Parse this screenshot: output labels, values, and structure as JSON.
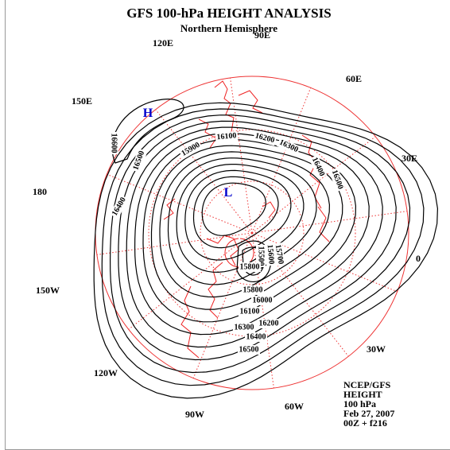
{
  "header": {
    "title": "GFS 100-hPa HEIGHT ANALYSIS",
    "subtitle": "Northern Hemisphere"
  },
  "longitude_labels": [
    "90E",
    "120E",
    "60E",
    "150E",
    "30E",
    "180",
    "0",
    "150W",
    "30W",
    "120W",
    "90W",
    "60W"
  ],
  "centers": {
    "high": "H",
    "low": "L"
  },
  "contour_labels": [
    "16600",
    "16500",
    "16400",
    "15900",
    "16100",
    "16200",
    "16300",
    "16400",
    "16500",
    "15500",
    "15600",
    "15700",
    "15800",
    "15800",
    "16000",
    "16100",
    "16200",
    "16300",
    "16400",
    "16500"
  ],
  "footer": {
    "lines": [
      "NCEP/GFS",
      "HEIGHT",
      "100 hPa",
      "Feb 27, 2007",
      "00Z + f216"
    ]
  }
}
